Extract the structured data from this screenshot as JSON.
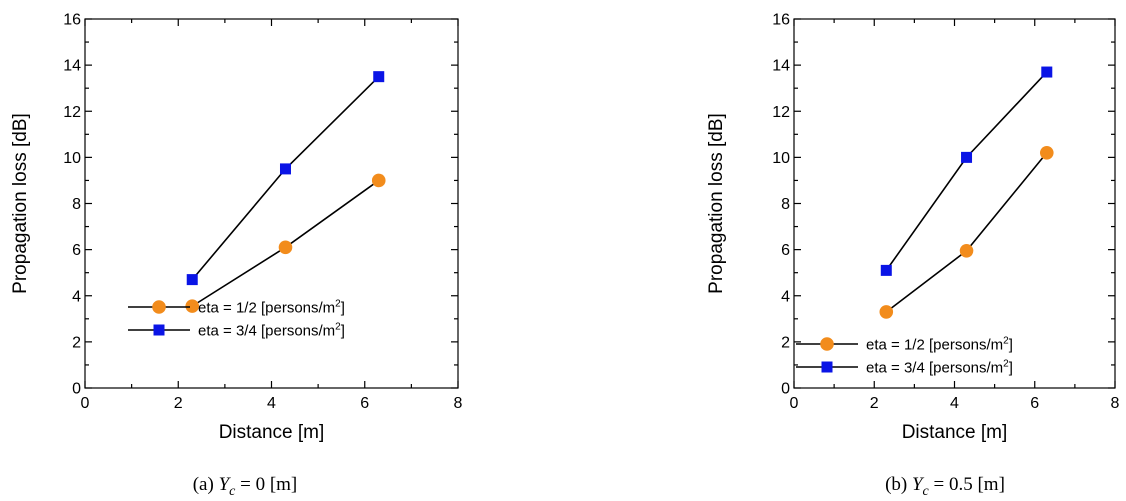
{
  "chart_data": [
    {
      "type": "line",
      "caption_prefix": "(a) ",
      "caption_var": "Y",
      "caption_sub": "c",
      "caption_rest": " = 0 [m]",
      "xlabel": "Distance [m]",
      "ylabel": "Propagation loss [dB]",
      "xlim": [
        0,
        8
      ],
      "ylim": [
        0,
        16
      ],
      "xticks": [
        0,
        2,
        4,
        6,
        8
      ],
      "yticks": [
        0,
        2,
        4,
        6,
        8,
        10,
        12,
        14,
        16
      ],
      "grid": false,
      "legend_position": "bottom-right",
      "series": [
        {
          "name": "eta = 1/2 [persons/m",
          "name_sup": "2",
          "name_end": "]",
          "marker": "circle",
          "color": "#f28c1c",
          "x": [
            2.3,
            4.3,
            6.3
          ],
          "y": [
            3.55,
            6.1,
            9.0
          ]
        },
        {
          "name": "eta = 3/4 [persons/m",
          "name_sup": "2",
          "name_end": "]",
          "marker": "square",
          "color": "#0a14e6",
          "x": [
            2.3,
            4.3,
            6.3
          ],
          "y": [
            4.7,
            9.5,
            13.5
          ]
        }
      ]
    },
    {
      "type": "line",
      "caption_prefix": "(b) ",
      "caption_var": "Y",
      "caption_sub": "c",
      "caption_rest": " = 0.5 [m]",
      "xlabel": "Distance [m]",
      "ylabel": "Propagation loss [dB]",
      "xlim": [
        0,
        8
      ],
      "ylim": [
        0,
        16
      ],
      "xticks": [
        0,
        2,
        4,
        6,
        8
      ],
      "yticks": [
        0,
        2,
        4,
        6,
        8,
        10,
        12,
        14,
        16
      ],
      "grid": false,
      "legend_position": "bottom-right",
      "series": [
        {
          "name": "eta = 1/2 [persons/m",
          "name_sup": "2",
          "name_end": "]",
          "marker": "circle",
          "color": "#f28c1c",
          "x": [
            2.3,
            4.3,
            6.3
          ],
          "y": [
            3.3,
            5.95,
            10.2
          ]
        },
        {
          "name": "eta = 3/4 [persons/m",
          "name_sup": "2",
          "name_end": "]",
          "marker": "square",
          "color": "#0a14e6",
          "x": [
            2.3,
            4.3,
            6.3
          ],
          "y": [
            5.1,
            10.0,
            13.7
          ]
        }
      ]
    }
  ]
}
